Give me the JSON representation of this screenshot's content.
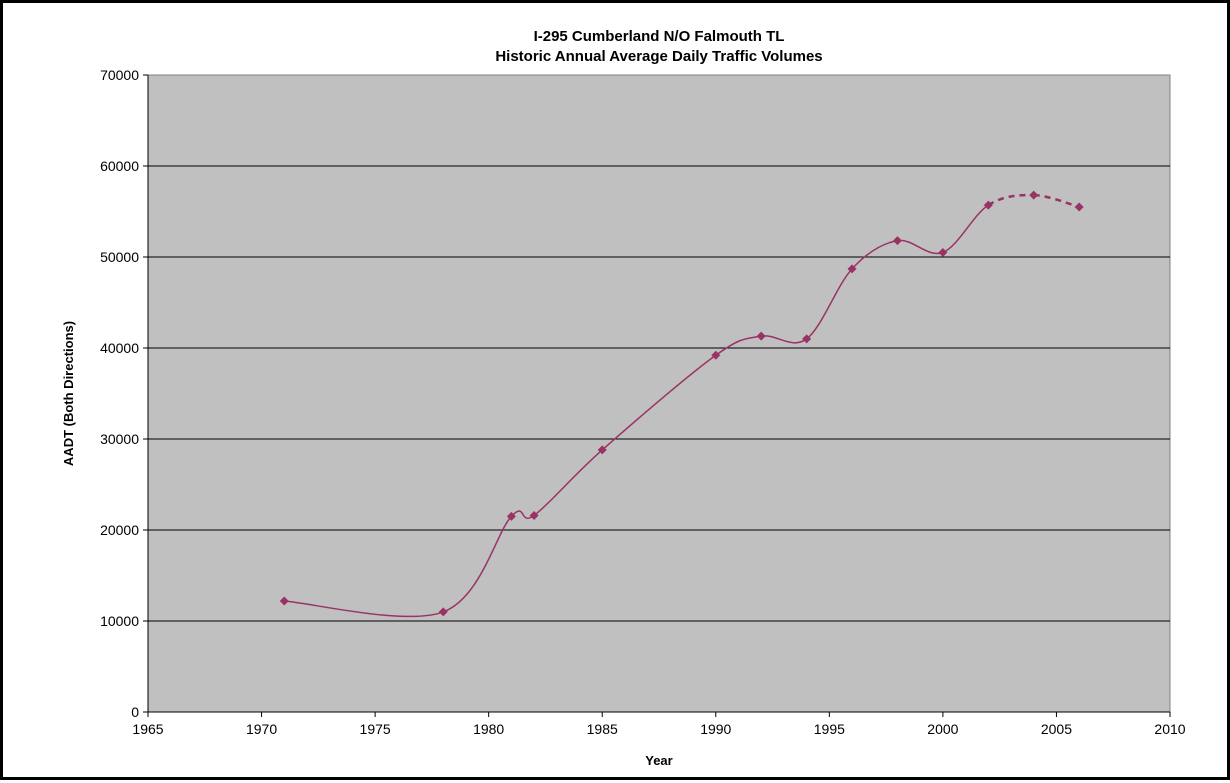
{
  "chart_data": {
    "type": "line",
    "title_lines": [
      "I-295 Cumberland N/O Falmouth TL",
      "Historic Annual Average Daily Traffic Volumes"
    ],
    "xlabel": "Year",
    "ylabel": "AADT (Both Directions)",
    "xlim": [
      1965,
      2010
    ],
    "ylim": [
      0,
      70000
    ],
    "x_ticks": [
      1965,
      1970,
      1975,
      1980,
      1985,
      1990,
      1995,
      2000,
      2005,
      2010
    ],
    "y_ticks": [
      0,
      10000,
      20000,
      30000,
      40000,
      50000,
      60000,
      70000
    ],
    "grid": "horizontal",
    "plot_background": "#c0c0c0",
    "series": [
      {
        "color": "#993366",
        "marker": "diamond",
        "smooth": true,
        "points": [
          {
            "x": 1971,
            "y": 12200
          },
          {
            "x": 1978,
            "y": 11000
          },
          {
            "x": 1981,
            "y": 21500
          },
          {
            "x": 1982,
            "y": 21600
          },
          {
            "x": 1985,
            "y": 28800
          },
          {
            "x": 1990,
            "y": 39200
          },
          {
            "x": 1992,
            "y": 41300
          },
          {
            "x": 1994,
            "y": 41000
          },
          {
            "x": 1996,
            "y": 48700
          },
          {
            "x": 1998,
            "y": 51800
          },
          {
            "x": 2000,
            "y": 50500
          },
          {
            "x": 2002,
            "y": 55700
          },
          {
            "x": 2004,
            "y": 56800
          },
          {
            "x": 2006,
            "y": 55500
          }
        ],
        "dashed_from_x": 2002
      }
    ]
  }
}
